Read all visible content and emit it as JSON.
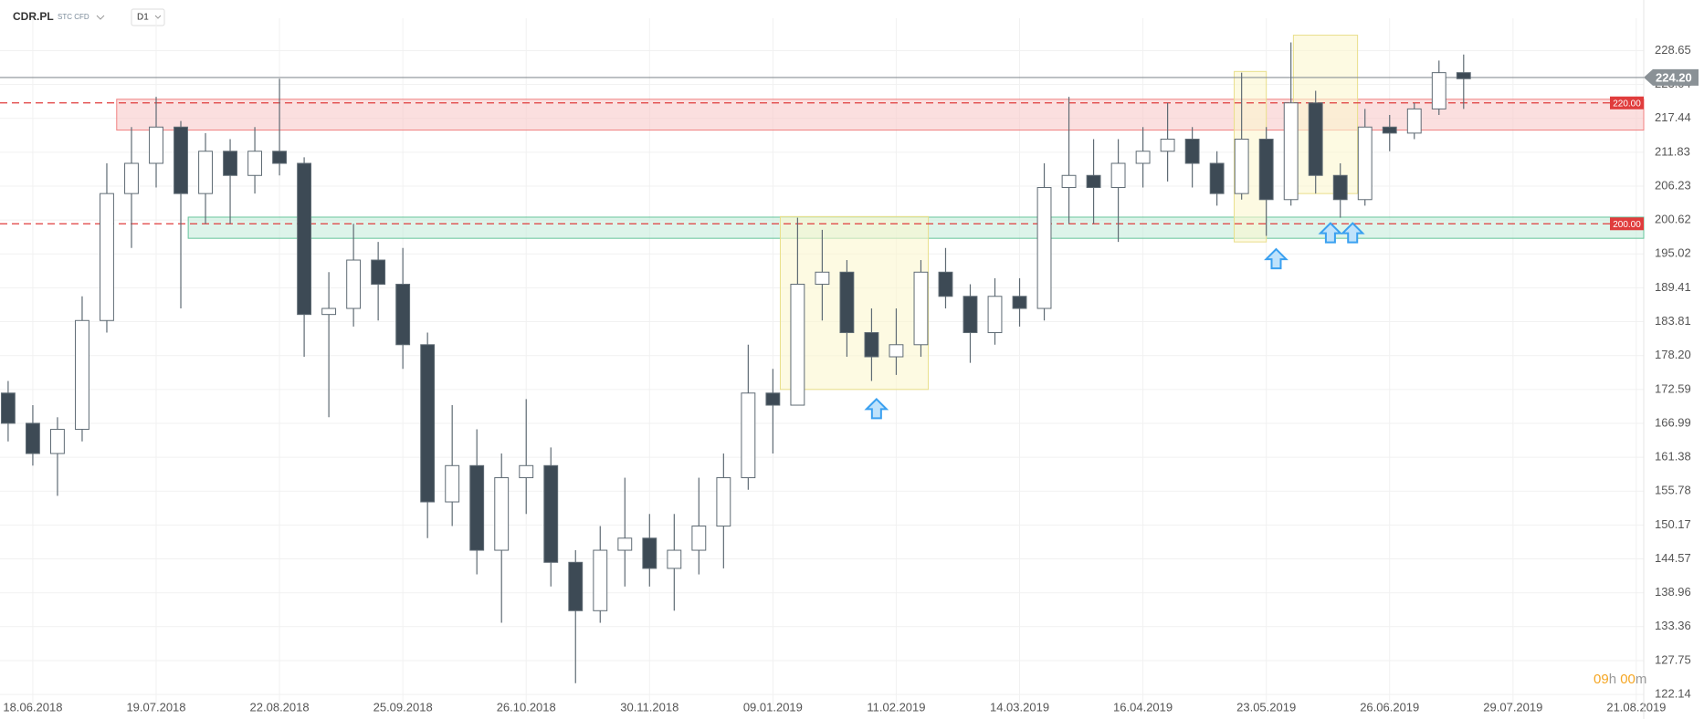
{
  "header": {
    "symbol": "CDR.PL",
    "instrument": "STC CFD",
    "interval": "D1"
  },
  "countdown": [
    "09",
    "h",
    "00",
    "m"
  ],
  "chart_data": {
    "type": "candlestick",
    "xlim": [
      -1.33,
      65.3
    ],
    "ylim": [
      120.5,
      234
    ],
    "xticks": [
      {
        "value": 0,
        "label": "18.06.2018"
      },
      {
        "value": 5,
        "label": "19.07.2018"
      },
      {
        "value": 10,
        "label": "22.08.2018"
      },
      {
        "value": 15,
        "label": "25.09.2018"
      },
      {
        "value": 20,
        "label": "26.10.2018"
      },
      {
        "value": 25,
        "label": "30.11.2018"
      },
      {
        "value": 30,
        "label": "09.01.2019"
      },
      {
        "value": 35,
        "label": "11.02.2019"
      },
      {
        "value": 40,
        "label": "14.03.2019"
      },
      {
        "value": 45,
        "label": "16.04.2019"
      },
      {
        "value": 50,
        "label": "23.05.2019"
      },
      {
        "value": 55,
        "label": "26.06.2019"
      },
      {
        "value": 60,
        "label": "29.07.2019"
      },
      {
        "value": 65,
        "label": "21.08.2019"
      }
    ],
    "yticks": [
      122.14,
      127.75,
      133.36,
      138.96,
      144.57,
      150.17,
      155.78,
      161.38,
      166.99,
      172.59,
      {
        "value": 178.2,
        "label": "178.20"
      },
      183.81,
      189.41,
      195.02,
      200.62,
      206.23,
      211.83,
      217.44,
      223.04,
      228.65
    ],
    "grid": true,
    "series": [
      {
        "up_color": "#ffffff",
        "down_color": "#3d4a55",
        "edge_color": "#5f6b74",
        "x": [
          -1,
          0,
          1,
          2,
          3,
          4,
          5,
          6,
          7,
          8,
          9,
          10,
          11,
          12,
          13,
          14,
          15,
          16,
          17,
          18,
          19,
          20,
          21,
          22,
          23,
          24,
          25,
          26,
          27,
          28,
          29,
          30,
          31,
          32,
          33,
          34,
          35,
          36,
          37,
          38,
          39,
          40,
          41,
          42,
          43,
          44,
          45,
          46,
          47,
          48,
          49,
          50,
          51,
          52,
          53,
          54,
          55,
          56,
          57,
          58
        ],
        "open": [
          172,
          167,
          162,
          166,
          184,
          205,
          210,
          216,
          205,
          212,
          208,
          212,
          210,
          185,
          186,
          194,
          190,
          180,
          154,
          160,
          146,
          158,
          160,
          144,
          136,
          146,
          148,
          143,
          146,
          150,
          158,
          172,
          170,
          190,
          192,
          182,
          178,
          180,
          192,
          188,
          182,
          188,
          186,
          206,
          208,
          206,
          210,
          212,
          214,
          210,
          205,
          214,
          204,
          220,
          208,
          204,
          216,
          215,
          219,
          225
        ],
        "high": [
          174,
          170,
          168,
          188,
          210,
          216,
          221,
          217,
          215,
          214,
          216,
          224,
          211,
          192,
          200,
          197,
          196,
          182,
          170,
          166,
          162,
          171,
          163,
          146,
          150,
          158,
          152,
          152,
          158,
          162,
          180,
          176,
          201,
          199,
          194,
          186,
          186,
          194,
          196,
          190,
          191,
          191,
          210,
          221,
          214,
          214,
          216,
          220,
          216,
          212,
          225,
          216,
          230,
          222,
          210,
          219,
          218,
          220,
          227,
          228
        ],
        "low": [
          164,
          160,
          155,
          164,
          182,
          196,
          206,
          186,
          200,
          200,
          205,
          208,
          178,
          168,
          183,
          184,
          176,
          148,
          150,
          142,
          134,
          152,
          140,
          124,
          134,
          140,
          140,
          136,
          142,
          143,
          156,
          162,
          170,
          184,
          178,
          174,
          175,
          178,
          186,
          177,
          180,
          183,
          184,
          200,
          200,
          197,
          206,
          207,
          206,
          203,
          204,
          198,
          203,
          205,
          201,
          203,
          212,
          214,
          218,
          219
        ],
        "close": [
          167,
          162,
          166,
          184,
          205,
          210,
          216,
          205,
          212,
          208,
          212,
          210,
          185,
          186,
          194,
          190,
          180,
          154,
          160,
          146,
          158,
          160,
          144,
          136,
          146,
          148,
          143,
          146,
          150,
          158,
          172,
          170,
          190,
          192,
          182,
          178,
          180,
          192,
          188,
          182,
          188,
          186,
          206,
          208,
          206,
          210,
          212,
          214,
          210,
          205,
          214,
          204,
          220,
          208,
          204,
          216,
          215,
          219,
          225,
          224
        ]
      }
    ],
    "zones": [
      {
        "color": "#f8c9c9",
        "edge": "#f08080",
        "start": 3.4,
        "end": 65.3,
        "from": 215.5,
        "to": 220.6
      },
      {
        "color": "#c6ecdc",
        "edge": "#66c49c",
        "start": 6.3,
        "end": 65.3,
        "from": 197.6,
        "to": 201.1
      },
      {
        "color": "#fbf6cf",
        "edge": "#e9df8a",
        "start": 30.3,
        "end": 36.3,
        "from": 172.6,
        "to": 201.2
      },
      {
        "color": "#fbf6cf",
        "edge": "#e9df8a",
        "start": 48.7,
        "end": 50.0,
        "from": 197.0,
        "to": 225.2
      },
      {
        "color": "#fbf6cf",
        "edge": "#e9df8a",
        "start": 51.1,
        "end": 53.7,
        "from": 205.0,
        "to": 231.2
      }
    ],
    "levels": [
      {
        "value": 220,
        "label": "220.00",
        "color": "#e03c3c"
      },
      {
        "value": 200,
        "label": "200.00",
        "color": "#e03c3c"
      }
    ],
    "last_price": {
      "value": 224.2,
      "label": "224.20",
      "color": "#8a9196"
    },
    "arrows": [
      {
        "x": 34.2,
        "y": 171.0,
        "color": "#3aa0f0"
      },
      {
        "x": 50.4,
        "y": 195.8,
        "color": "#3aa0f0"
      },
      {
        "x": 52.6,
        "y": 200.1,
        "color": "#3aa0f0"
      },
      {
        "x": 53.5,
        "y": 200.1,
        "color": "#3aa0f0"
      }
    ]
  }
}
